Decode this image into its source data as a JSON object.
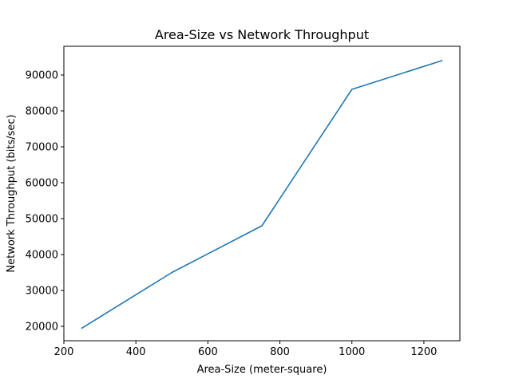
{
  "chart_data": {
    "type": "line",
    "title": "Area-Size vs Network Throughput",
    "xlabel": "Area-Size (meter-square)",
    "ylabel": "Network Throughput (bits/sec)",
    "xlim": [
      200,
      1300
    ],
    "ylim": [
      16000,
      98000
    ],
    "xticks": [
      200,
      400,
      600,
      800,
      1000,
      1200
    ],
    "yticks": [
      20000,
      30000,
      40000,
      50000,
      60000,
      70000,
      80000,
      90000
    ],
    "grid": false,
    "series": [
      {
        "color": "#1f77b4",
        "x": [
          250,
          500,
          750,
          1000,
          1250
        ],
        "y": [
          19500,
          35000,
          48000,
          86000,
          94000
        ]
      }
    ]
  }
}
